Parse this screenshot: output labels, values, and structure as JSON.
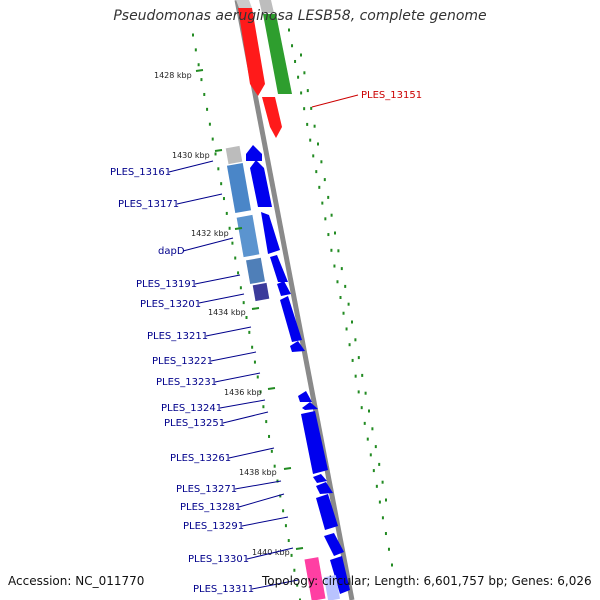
{
  "title": "Pseudomonas aeruginosa LESB58, complete genome",
  "accession": "Accession: NC_011770",
  "topology": "Topology: circular; Length: 6,601,757 bp; Genes: 6,026",
  "colors": {
    "forward_gene": "#0000ee",
    "label_blue": "#00008b",
    "label_red": "#cc0000",
    "tick_green": "#228b22",
    "backbone": "#8a8a8a"
  },
  "kbp_ticks": [
    "1428 kbp",
    "1430 kbp",
    "1432 kbp",
    "1434 kbp",
    "1436 kbp",
    "1438 kbp",
    "1440 kbp"
  ],
  "gene_labels": [
    {
      "text": "PLES_13151",
      "color": "red"
    },
    {
      "text": "PLES_13161",
      "color": "blue"
    },
    {
      "text": "PLES_13171",
      "color": "blue"
    },
    {
      "text": "dapD",
      "color": "blue"
    },
    {
      "text": "PLES_13191",
      "color": "blue"
    },
    {
      "text": "PLES_13201",
      "color": "blue"
    },
    {
      "text": "PLES_13211",
      "color": "blue"
    },
    {
      "text": "PLES_13221",
      "color": "blue"
    },
    {
      "text": "PLES_13231",
      "color": "blue"
    },
    {
      "text": "PLES_13241",
      "color": "blue"
    },
    {
      "text": "PLES_13251",
      "color": "blue"
    },
    {
      "text": "PLES_13261",
      "color": "blue"
    },
    {
      "text": "PLES_13271",
      "color": "blue"
    },
    {
      "text": "PLES_13281",
      "color": "blue"
    },
    {
      "text": "PLES_13291",
      "color": "blue"
    },
    {
      "text": "PLES_13301",
      "color": "blue"
    },
    {
      "text": "PLES_13311",
      "color": "blue"
    }
  ]
}
